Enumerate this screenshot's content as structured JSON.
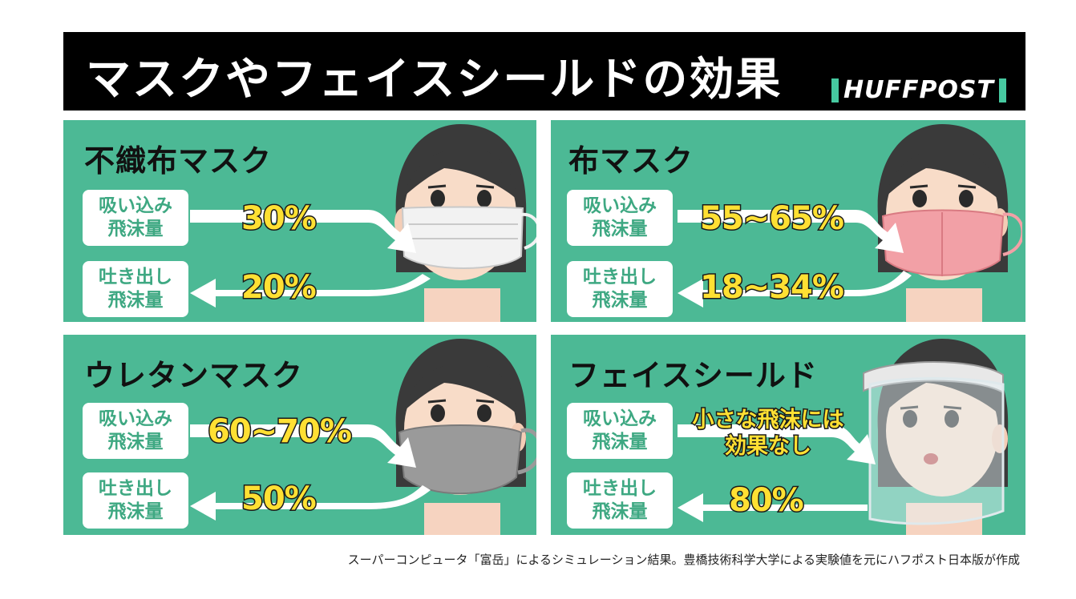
{
  "header": {
    "title": "マスクやフェイスシールドの効果",
    "logo_text": "HUFFPOST"
  },
  "panels": [
    {
      "title": "不織布マスク",
      "inhale_label": [
        "吸い込み",
        "飛沫量"
      ],
      "inhale_value": "30%",
      "exhale_label": [
        "吐き出し",
        "飛沫量"
      ],
      "exhale_value": "20%",
      "mask_type": "surgical-mask"
    },
    {
      "title": "布マスク",
      "inhale_label": [
        "吸い込み",
        "飛沫量"
      ],
      "inhale_value": "55~65%",
      "exhale_label": [
        "吐き出し",
        "飛沫量"
      ],
      "exhale_value": "18~34%",
      "mask_type": "cloth-mask"
    },
    {
      "title": "ウレタンマスク",
      "inhale_label": [
        "吸い込み",
        "飛沫量"
      ],
      "inhale_value": "60~70%",
      "exhale_label": [
        "吐き出し",
        "飛沫量"
      ],
      "exhale_value": "50%",
      "mask_type": "urethane-mask"
    },
    {
      "title": "フェイスシールド",
      "inhale_label": [
        "吸い込み",
        "飛沫量"
      ],
      "inhale_value": [
        "小さな飛沫には",
        "効果なし"
      ],
      "exhale_label": [
        "吐き出し",
        "飛沫量"
      ],
      "exhale_value": "80%",
      "mask_type": "face-shield"
    }
  ],
  "footer": "スーパーコンピュータ「富岳」によるシミュレーション結果。豊橋技術科学大学による実験値を元にハフポスト日本版が作成",
  "colors": {
    "panel_green": "#4cb995",
    "label_text": "#3ea882",
    "value_yellow": "#ffe033",
    "header_black": "#000000",
    "logo_accent": "#46c9a0",
    "surgical_mask": "#f2f2f2",
    "cloth_mask": "#f2a0a6",
    "urethane_mask": "#9a9a9a"
  }
}
